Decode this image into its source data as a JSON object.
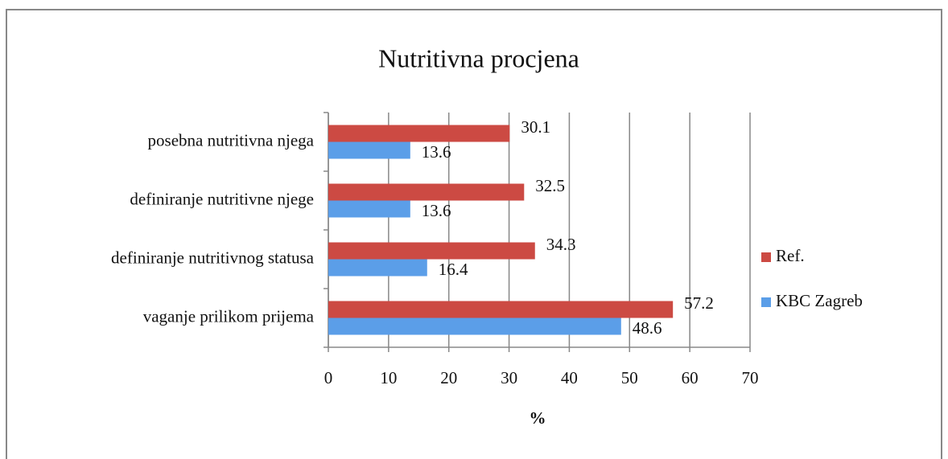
{
  "chart_data": {
    "type": "bar",
    "orientation": "horizontal",
    "title": "Nutritivna procjena",
    "xlabel": "%",
    "categories": [
      "posebna nutritivna njega",
      "definiranje nutritivne njege",
      "definiranje nutritivnog statusa",
      "vaganje prilikom prijema"
    ],
    "series": [
      {
        "name": "Ref.",
        "color": "#cc4a43",
        "values": [
          30.1,
          32.5,
          34.3,
          57.2
        ]
      },
      {
        "name": "KBC Zagreb",
        "color": "#5b9ee8",
        "values": [
          13.6,
          13.6,
          16.4,
          48.6
        ]
      }
    ],
    "xlim": [
      0,
      70
    ],
    "xticks": [
      0,
      10,
      20,
      30,
      40,
      50,
      60,
      70
    ],
    "grid": true,
    "legend": "right"
  }
}
